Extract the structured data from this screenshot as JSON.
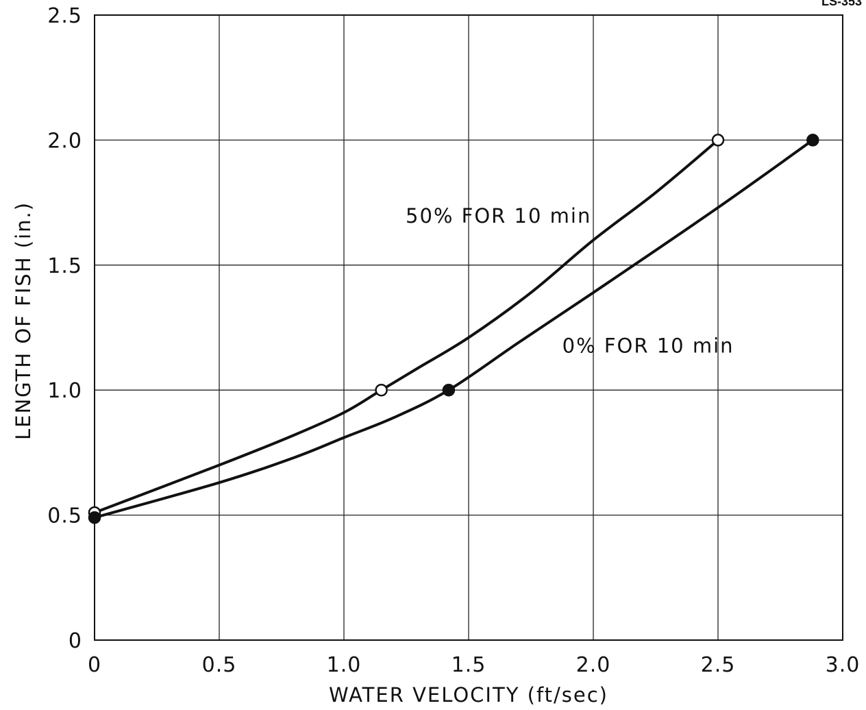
{
  "figure_id": "LS-353",
  "chart_data": {
    "type": "line",
    "title": "",
    "xlabel": "WATER VELOCITY  (ft/sec)",
    "ylabel": "LENGTH OF FISH  (in.)",
    "xlim": [
      0,
      3.0
    ],
    "ylim": [
      0,
      2.5
    ],
    "x_ticks": [
      0,
      0.5,
      1.0,
      1.5,
      2.0,
      2.5,
      3.0
    ],
    "x_tick_labels": [
      "0",
      "0.5",
      "1.0",
      "1.5",
      "2.0",
      "2.5",
      "3.0"
    ],
    "y_ticks": [
      0,
      0.5,
      1.0,
      1.5,
      2.0,
      2.5
    ],
    "y_tick_labels": [
      "0",
      "0.5",
      "1.0",
      "1.5",
      "2.0",
      "2.5"
    ],
    "grid": true,
    "series": [
      {
        "name": "50% FOR 10 min",
        "marker": "open-circle",
        "points": [
          {
            "x": 0.0,
            "y": 0.51
          },
          {
            "x": 1.15,
            "y": 1.0
          },
          {
            "x": 2.5,
            "y": 2.0
          }
        ],
        "curve": [
          {
            "x": 0.0,
            "y": 0.51
          },
          {
            "x": 0.5,
            "y": 0.7
          },
          {
            "x": 0.8,
            "y": 0.82
          },
          {
            "x": 1.0,
            "y": 0.91
          },
          {
            "x": 1.15,
            "y": 1.0
          },
          {
            "x": 1.3,
            "y": 1.09
          },
          {
            "x": 1.5,
            "y": 1.21
          },
          {
            "x": 1.75,
            "y": 1.39
          },
          {
            "x": 2.0,
            "y": 1.6
          },
          {
            "x": 2.25,
            "y": 1.79
          },
          {
            "x": 2.5,
            "y": 2.0
          }
        ],
        "label_position": {
          "x": 1.62,
          "y": 1.67
        },
        "color": "#111111"
      },
      {
        "name": "0% FOR 10 min",
        "marker": "filled-circle",
        "points": [
          {
            "x": 0.0,
            "y": 0.49
          },
          {
            "x": 1.42,
            "y": 1.0
          },
          {
            "x": 2.88,
            "y": 2.0
          }
        ],
        "curve": [
          {
            "x": 0.0,
            "y": 0.49
          },
          {
            "x": 0.5,
            "y": 0.63
          },
          {
            "x": 0.8,
            "y": 0.73
          },
          {
            "x": 1.0,
            "y": 0.81
          },
          {
            "x": 1.2,
            "y": 0.89
          },
          {
            "x": 1.42,
            "y": 1.0
          },
          {
            "x": 1.7,
            "y": 1.19
          },
          {
            "x": 2.0,
            "y": 1.39
          },
          {
            "x": 2.5,
            "y": 1.73
          },
          {
            "x": 2.88,
            "y": 2.0
          }
        ],
        "label_position": {
          "x": 2.22,
          "y": 1.15
        },
        "color": "#111111"
      }
    ]
  }
}
